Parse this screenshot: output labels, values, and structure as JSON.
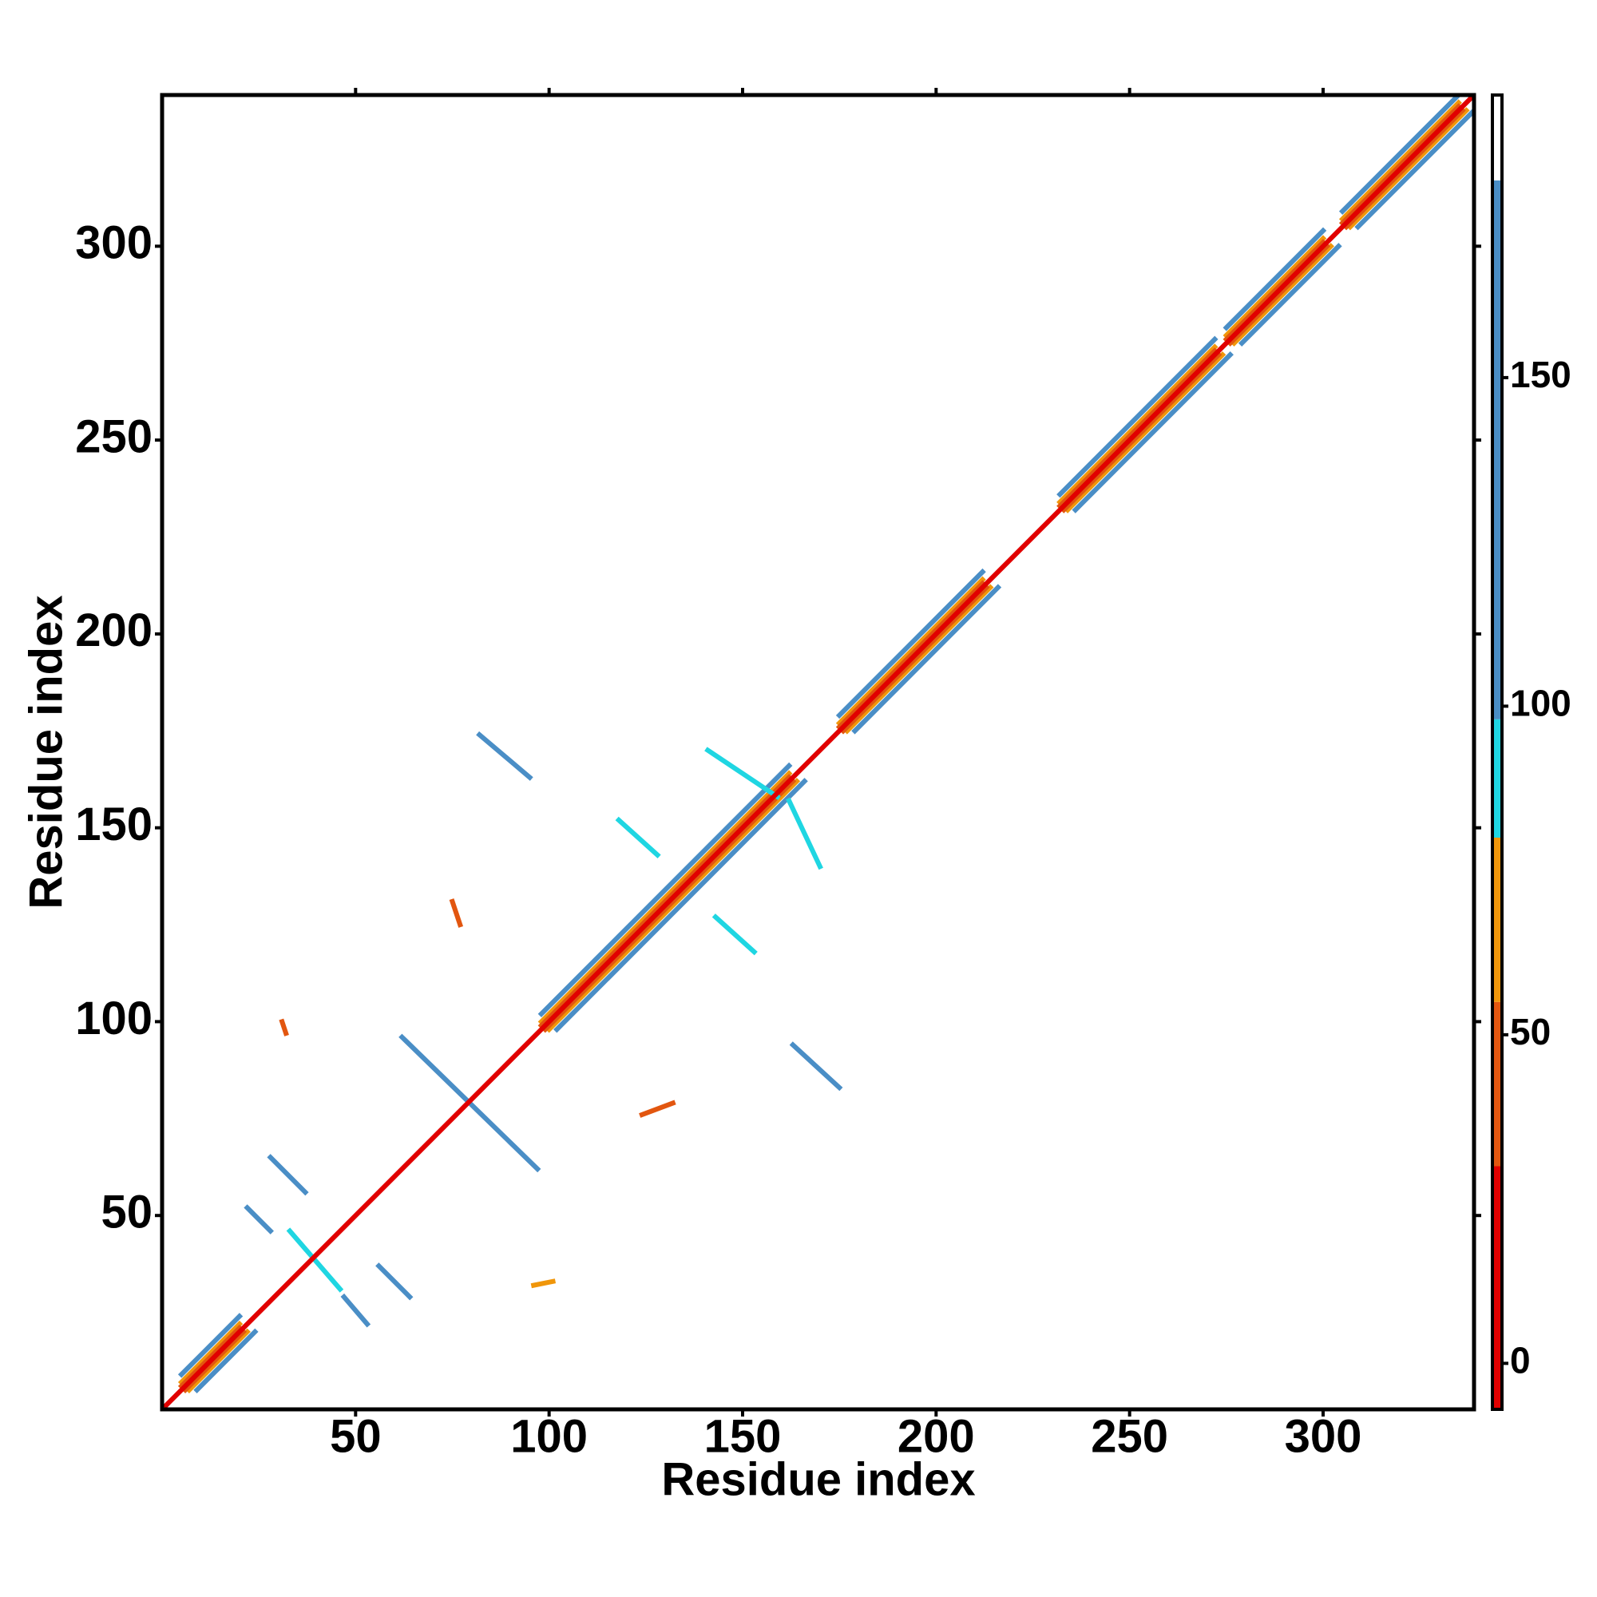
{
  "chart_data": {
    "type": "contact-map",
    "x_label": "Residue index",
    "y_label": "Residue index",
    "xlim": [
      0,
      339
    ],
    "ylim": [
      0,
      339
    ],
    "xticks": [
      50,
      100,
      150,
      200,
      250,
      300
    ],
    "yticks": [
      50,
      100,
      150,
      200,
      250,
      300
    ],
    "colorbar": {
      "lim": [
        -7,
        193
      ],
      "ticks": [
        0,
        50,
        100,
        150
      ],
      "bands": [
        {
          "from": -7,
          "to": 30,
          "color": "#e10000"
        },
        {
          "from": 30,
          "to": 55,
          "color": "#e2560f"
        },
        {
          "from": 55,
          "to": 80,
          "color": "#f0960a"
        },
        {
          "from": 80,
          "to": 98,
          "color": "#1fd6e2"
        },
        {
          "from": 98,
          "to": 180,
          "color": "#4a8ec6"
        },
        {
          "from": 180,
          "to": 193,
          "color": "#ffffff"
        }
      ]
    },
    "contacts": [
      {
        "from": [
          5,
          9
        ],
        "to": [
          20,
          24
        ],
        "value": 120
      },
      {
        "from": [
          9,
          5
        ],
        "to": [
          24,
          20
        ],
        "value": 120
      },
      {
        "from": [
          5,
          7
        ],
        "to": [
          20,
          22
        ],
        "value": 65
      },
      {
        "from": [
          7,
          5
        ],
        "to": [
          22,
          20
        ],
        "value": 65
      },
      {
        "from": [
          5,
          6
        ],
        "to": [
          20,
          21
        ],
        "value": 40
      },
      {
        "from": [
          6,
          5
        ],
        "to": [
          21,
          20
        ],
        "value": 40
      },
      {
        "from": [
          98,
          102
        ],
        "to": [
          162,
          166
        ],
        "value": 120
      },
      {
        "from": [
          102,
          98
        ],
        "to": [
          166,
          162
        ],
        "value": 120
      },
      {
        "from": [
          98,
          100
        ],
        "to": [
          162,
          164
        ],
        "value": 65
      },
      {
        "from": [
          100,
          98
        ],
        "to": [
          164,
          162
        ],
        "value": 65
      },
      {
        "from": [
          98,
          99
        ],
        "to": [
          162,
          163
        ],
        "value": 40
      },
      {
        "from": [
          99,
          98
        ],
        "to": [
          163,
          162
        ],
        "value": 40
      },
      {
        "from": [
          175,
          179
        ],
        "to": [
          212,
          216
        ],
        "value": 120
      },
      {
        "from": [
          179,
          175
        ],
        "to": [
          216,
          212
        ],
        "value": 120
      },
      {
        "from": [
          175,
          177
        ],
        "to": [
          212,
          214
        ],
        "value": 65
      },
      {
        "from": [
          177,
          175
        ],
        "to": [
          214,
          212
        ],
        "value": 65
      },
      {
        "from": [
          175,
          176
        ],
        "to": [
          212,
          213
        ],
        "value": 40
      },
      {
        "from": [
          176,
          175
        ],
        "to": [
          213,
          212
        ],
        "value": 40
      },
      {
        "from": [
          232,
          236
        ],
        "to": [
          272,
          276
        ],
        "value": 120
      },
      {
        "from": [
          236,
          232
        ],
        "to": [
          276,
          272
        ],
        "value": 120
      },
      {
        "from": [
          232,
          234
        ],
        "to": [
          272,
          274
        ],
        "value": 65
      },
      {
        "from": [
          234,
          232
        ],
        "to": [
          274,
          272
        ],
        "value": 65
      },
      {
        "from": [
          232,
          233
        ],
        "to": [
          272,
          273
        ],
        "value": 40
      },
      {
        "from": [
          233,
          232
        ],
        "to": [
          273,
          272
        ],
        "value": 40
      },
      {
        "from": [
          275,
          279
        ],
        "to": [
          300,
          304
        ],
        "value": 120
      },
      {
        "from": [
          279,
          275
        ],
        "to": [
          304,
          300
        ],
        "value": 120
      },
      {
        "from": [
          275,
          277
        ],
        "to": [
          300,
          302
        ],
        "value": 65
      },
      {
        "from": [
          277,
          275
        ],
        "to": [
          302,
          300
        ],
        "value": 65
      },
      {
        "from": [
          275,
          276
        ],
        "to": [
          300,
          301
        ],
        "value": 40
      },
      {
        "from": [
          276,
          275
        ],
        "to": [
          301,
          300
        ],
        "value": 40
      },
      {
        "from": [
          305,
          309
        ],
        "to": [
          335,
          339
        ],
        "value": 120
      },
      {
        "from": [
          309,
          305
        ],
        "to": [
          339,
          335
        ],
        "value": 120
      },
      {
        "from": [
          305,
          307
        ],
        "to": [
          335,
          337
        ],
        "value": 65
      },
      {
        "from": [
          307,
          305
        ],
        "to": [
          337,
          335
        ],
        "value": 65
      },
      {
        "from": [
          305,
          306
        ],
        "to": [
          335,
          336
        ],
        "value": 40
      },
      {
        "from": [
          306,
          305
        ],
        "to": [
          336,
          335
        ],
        "value": 40
      },
      {
        "from": [
          82,
          174
        ],
        "to": [
          95,
          163
        ],
        "value": 120
      },
      {
        "from": [
          62,
          96
        ],
        "to": [
          97,
          62
        ],
        "value": 120
      },
      {
        "from": [
          28,
          65
        ],
        "to": [
          37,
          56
        ],
        "value": 120
      },
      {
        "from": [
          22,
          52
        ],
        "to": [
          28,
          46
        ],
        "value": 120
      },
      {
        "from": [
          47,
          29
        ],
        "to": [
          53,
          22
        ],
        "value": 120
      },
      {
        "from": [
          56,
          37
        ],
        "to": [
          64,
          29
        ],
        "value": 120
      },
      {
        "from": [
          33,
          46
        ],
        "to": [
          46,
          31
        ],
        "value": 90
      },
      {
        "from": [
          163,
          94
        ],
        "to": [
          175,
          83
        ],
        "value": 120
      },
      {
        "from": [
          141,
          170
        ],
        "to": [
          159,
          158
        ],
        "value": 90
      },
      {
        "from": [
          162,
          157
        ],
        "to": [
          170,
          140
        ],
        "value": 90
      },
      {
        "from": [
          118,
          152
        ],
        "to": [
          128,
          143
        ],
        "value": 90
      },
      {
        "from": [
          143,
          127
        ],
        "to": [
          153,
          118
        ],
        "value": 90
      },
      {
        "from": [
          75,
          131
        ],
        "to": [
          77,
          125
        ],
        "value": 40
      },
      {
        "from": [
          31,
          100
        ],
        "to": [
          32,
          97
        ],
        "value": 40
      },
      {
        "from": [
          124,
          76
        ],
        "to": [
          132,
          79
        ],
        "value": 40
      },
      {
        "from": [
          96,
          32
        ],
        "to": [
          101,
          33
        ],
        "value": 65
      },
      {
        "from": [
          1,
          1
        ],
        "to": [
          339,
          339
        ],
        "value": 0
      }
    ]
  }
}
